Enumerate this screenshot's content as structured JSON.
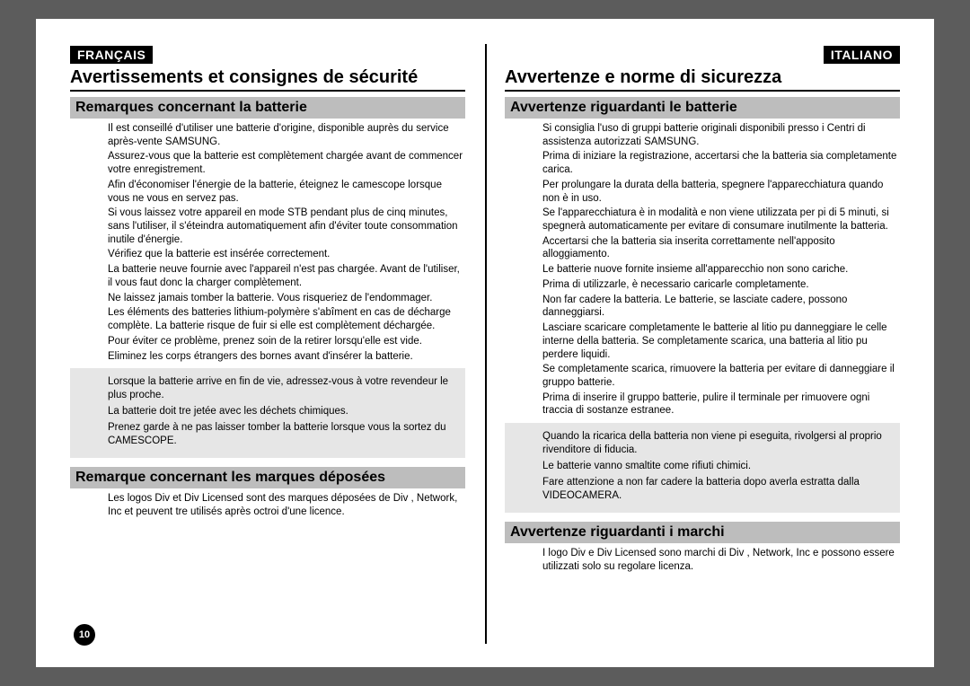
{
  "left": {
    "lang": "FRANÇAIS",
    "title": "Avertissements et consignes de sécurité",
    "section1": "Remarques concernant la batterie",
    "bullets1": [
      "Il est conseillé d'utiliser une batterie d'origine, disponible auprès du service après-vente SAMSUNG.",
      "Assurez-vous que la batterie est complètement chargée avant de commencer votre enregistrement.",
      "Afin d'économiser l'énergie de la batterie, éteignez le camescope lorsque vous ne vous en servez pas.",
      "Si vous laissez votre appareil en mode STB  pendant plus de cinq minutes, sans l'utiliser, il s'éteindra automatiquement afin d'éviter toute consommation inutile d'énergie.",
      "Vérifiez que la batterie est insérée correctement.",
      "La batterie neuve fournie avec l'appareil n'est pas chargée. Avant de l'utiliser, il vous faut donc la charger complètement.",
      "Ne laissez jamais tomber la batterie. Vous risqueriez de l'endommager.",
      "Les éléments des batteries lithium-polymère s'abîment en cas de décharge complète. La batterie risque de fuir si elle est complètement déchargée.",
      "Pour éviter ce problème, prenez soin de la retirer lorsqu'elle est vide.",
      "Eliminez les corps étrangers des bornes avant d'insérer la batterie."
    ],
    "note1": [
      "Lorsque la batterie arrive en fin de vie, adressez-vous à votre revendeur le plus proche.",
      "La batterie doit  tre jetée avec les déchets chimiques.",
      "Prenez garde à ne pas laisser tomber la batterie lorsque vous la sortez du CAMESCOPE."
    ],
    "section2": "Remarque concernant les marques déposées",
    "bullets2": [
      "Les logos Div  et Div  Licensed sont des marques déposées de Div , Network, Inc et peuvent  tre utilisés après octroi d'une licence."
    ]
  },
  "right": {
    "lang": "ITALIANO",
    "title": "Avvertenze e norme di sicurezza",
    "section1": "Avvertenze riguardanti le batterie",
    "bullets1": [
      "Si consiglia l'uso di gruppi batterie originali disponibili presso i Centri di assistenza autorizzati SAMSUNG.",
      "Prima di iniziare la registrazione, accertarsi che la batteria sia completamente carica.",
      "Per prolungare la durata della batteria, spegnere l'apparecchiatura quando non è in uso.",
      "Se l'apparecchiatura è in modalità  e non viene utilizzata per pi  di 5 minuti, si spegnerà automaticamente per evitare di consumare inutilmente la batteria.",
      "Accertarsi che la batteria sia inserita correttamente nell'apposito alloggiamento.",
      "Le batterie nuove fornite insieme all'apparecchio non sono cariche.",
      "Prima di utilizzarle, è necessario caricarle completamente.",
      "Non far cadere la batteria. Le batterie, se lasciate cadere, possono danneggiarsi.",
      "Lasciare scaricare completamente le batterie al litio pu  danneggiare le celle interne della batteria. Se completamente scarica, una batteria al litio pu  perdere liquidi.",
      "Se completamente scarica, rimuovere la batteria per evitare di danneggiare il gruppo batterie.",
      "Prima di inserire il gruppo batterie, pulire il terminale per rimuovere ogni traccia di sostanze estranee."
    ],
    "note1": [
      "Quando la ricarica della batteria non viene pi  eseguita, rivolgersi al proprio rivenditore di fiducia.",
      "Le batterie vanno smaltite come rifiuti chimici.",
      "Fare attenzione a non far cadere la batteria dopo averla estratta dalla VIDEOCAMERA."
    ],
    "section2": "Avvertenze riguardanti i marchi",
    "bullets2": [
      "I logo Div  e Div  Licensed sono marchi di Div , Network, Inc e possono essere utilizzati solo su regolare licenza."
    ]
  },
  "page_number": "10"
}
